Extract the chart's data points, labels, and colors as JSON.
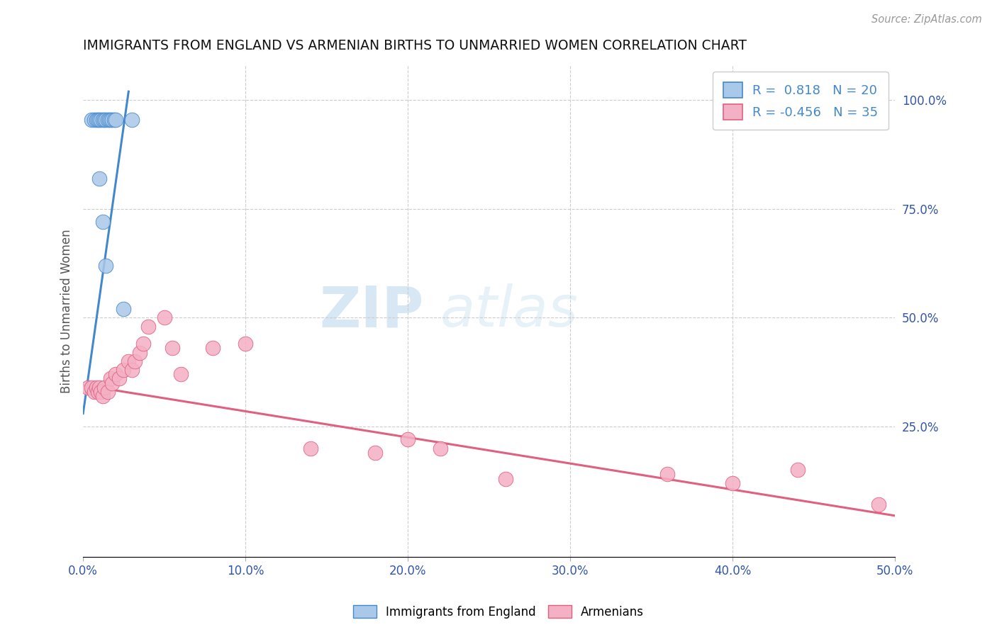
{
  "title": "IMMIGRANTS FROM ENGLAND VS ARMENIAN BIRTHS TO UNMARRIED WOMEN CORRELATION CHART",
  "source_text": "Source: ZipAtlas.com",
  "ylabel": "Births to Unmarried Women",
  "xlim": [
    0.0,
    0.5
  ],
  "ylim": [
    -0.05,
    1.08
  ],
  "xtick_labels": [
    "0.0%",
    "10.0%",
    "20.0%",
    "30.0%",
    "40.0%",
    "50.0%"
  ],
  "xtick_values": [
    0.0,
    0.1,
    0.2,
    0.3,
    0.4,
    0.5
  ],
  "ytick_labels_right": [
    "25.0%",
    "50.0%",
    "75.0%",
    "100.0%"
  ],
  "ytick_values_right": [
    0.25,
    0.5,
    0.75,
    1.0
  ],
  "blue_scatter_x": [
    0.005,
    0.007,
    0.008,
    0.009,
    0.01,
    0.011,
    0.012,
    0.013,
    0.014,
    0.015,
    0.016,
    0.017,
    0.018,
    0.019,
    0.02,
    0.03,
    0.01,
    0.012,
    0.014,
    0.025
  ],
  "blue_scatter_y": [
    0.955,
    0.955,
    0.955,
    0.955,
    0.955,
    0.955,
    0.955,
    0.955,
    0.955,
    0.955,
    0.955,
    0.955,
    0.955,
    0.955,
    0.955,
    0.955,
    0.82,
    0.72,
    0.62,
    0.52
  ],
  "pink_scatter_x": [
    0.003,
    0.005,
    0.007,
    0.008,
    0.009,
    0.01,
    0.011,
    0.012,
    0.013,
    0.015,
    0.017,
    0.018,
    0.02,
    0.022,
    0.025,
    0.028,
    0.03,
    0.032,
    0.035,
    0.037,
    0.04,
    0.05,
    0.055,
    0.06,
    0.08,
    0.1,
    0.14,
    0.18,
    0.2,
    0.22,
    0.26,
    0.36,
    0.4,
    0.44,
    0.49
  ],
  "pink_scatter_y": [
    0.34,
    0.34,
    0.33,
    0.34,
    0.33,
    0.34,
    0.33,
    0.32,
    0.34,
    0.33,
    0.36,
    0.35,
    0.37,
    0.36,
    0.38,
    0.4,
    0.38,
    0.4,
    0.42,
    0.44,
    0.48,
    0.5,
    0.43,
    0.37,
    0.43,
    0.44,
    0.2,
    0.19,
    0.22,
    0.2,
    0.13,
    0.14,
    0.12,
    0.15,
    0.07
  ],
  "blue_line_x": [
    0.0,
    0.028
  ],
  "blue_line_y": [
    0.28,
    1.02
  ],
  "pink_line_x": [
    0.0,
    0.5
  ],
  "pink_line_y": [
    0.345,
    0.045
  ],
  "blue_color": "#aac8e8",
  "pink_color": "#f4b0c4",
  "blue_line_color": "#4488cc",
  "pink_line_color": "#e06080",
  "R_blue": "0.818",
  "N_blue": "20",
  "R_pink": "-0.456",
  "N_pink": "35",
  "watermark_zip": "ZIP",
  "watermark_atlas": "atlas",
  "background_color": "#ffffff",
  "grid_color": "#cccccc"
}
